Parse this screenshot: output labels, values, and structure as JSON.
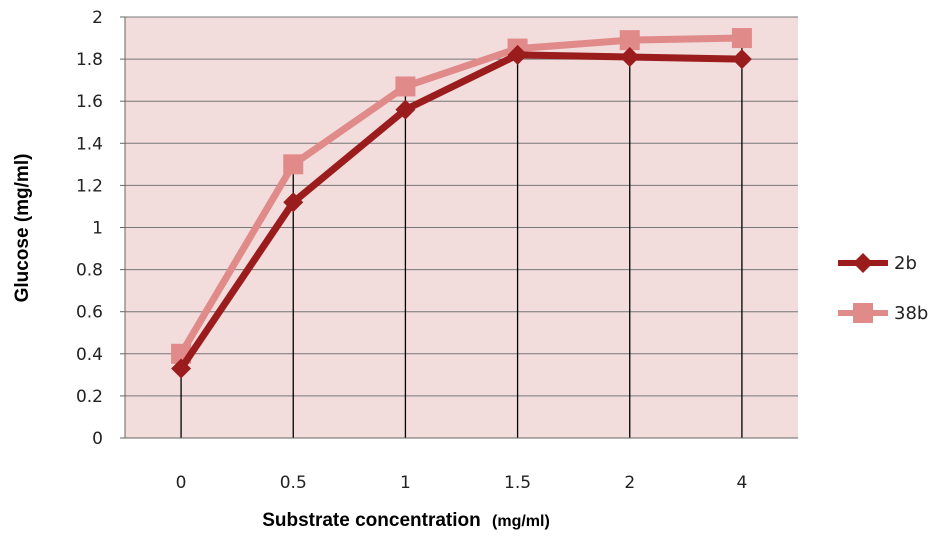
{
  "chart_data": {
    "type": "line",
    "categories": [
      "0",
      "0.5",
      "1",
      "1.5",
      "2",
      "4"
    ],
    "series": [
      {
        "name": "2b",
        "values": [
          0.33,
          1.12,
          1.56,
          1.82,
          1.81,
          1.8
        ],
        "color": "#9b1c1c",
        "marker": "diamond"
      },
      {
        "name": "38b",
        "values": [
          0.4,
          1.3,
          1.67,
          1.85,
          1.89,
          1.9
        ],
        "color": "#e08a8a",
        "marker": "square"
      }
    ],
    "xlabel": "Substrate concentration",
    "xlabel_unit": "(mg/ml)",
    "ylabel": "Glucose (mg/ml)",
    "ylim": [
      0,
      2
    ],
    "yticks": [
      "0",
      "0.2",
      "0.4",
      "0.6",
      "0.8",
      "1",
      "1.2",
      "1.4",
      "1.6",
      "1.8",
      "2"
    ],
    "plot_background": "#f2dcdc",
    "grid": true,
    "legend_position": "right"
  }
}
